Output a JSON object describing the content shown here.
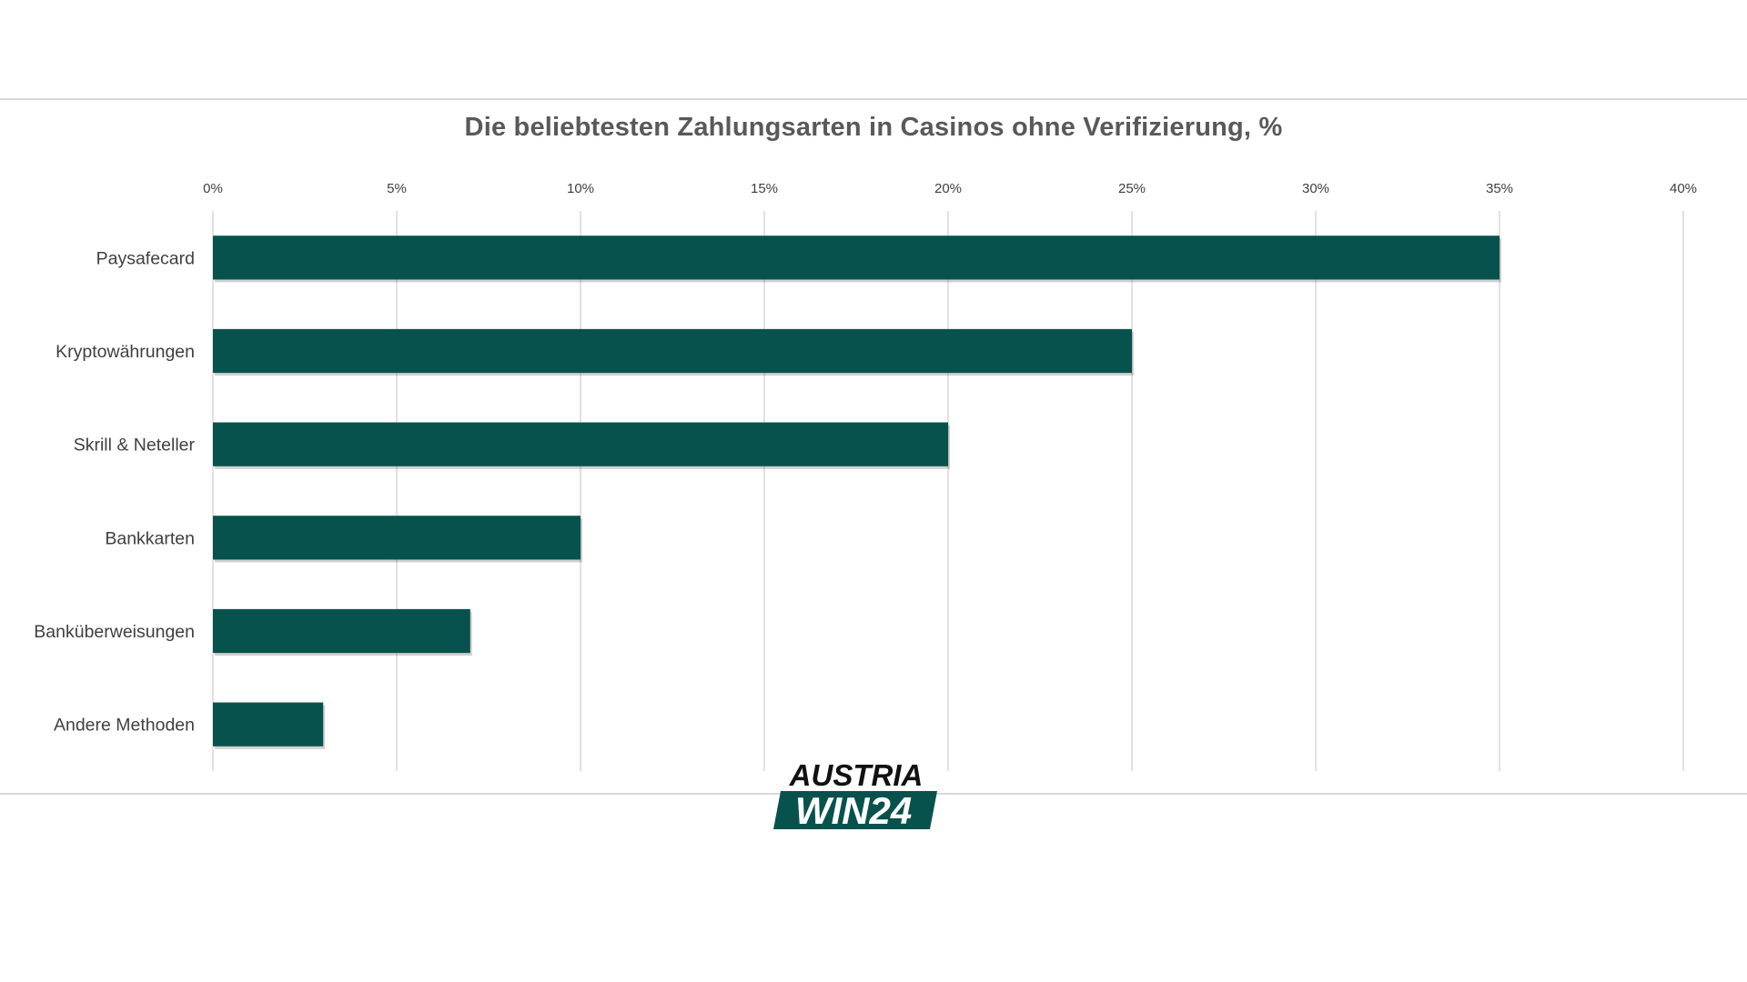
{
  "chart_data": {
    "type": "bar",
    "orientation": "horizontal",
    "title": "Die beliebtesten Zahlungsarten in Casinos ohne Verifizierung, %",
    "categories": [
      "Paysafecard",
      "Kryptowährungen",
      "Skrill & Neteller",
      "Bankkarten",
      "Banküberweisungen",
      "Andere Methoden"
    ],
    "values": [
      35,
      25,
      20,
      10,
      7,
      3
    ],
    "x_ticks": [
      "0%",
      "5%",
      "10%",
      "15%",
      "20%",
      "25%",
      "30%",
      "35%",
      "40%"
    ],
    "xlim": [
      0,
      40
    ],
    "xlabel": "",
    "ylabel": "",
    "x_axis_position": "top",
    "grid": true,
    "legend": "none",
    "bar_color": "#08524d"
  },
  "logo": {
    "line1": "AUSTRIA",
    "line2": "WIN24",
    "color": "#08524d"
  }
}
